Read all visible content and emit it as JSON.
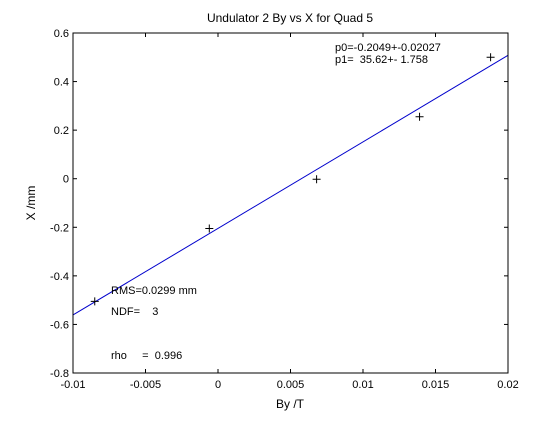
{
  "chart_data": {
    "type": "scatter",
    "title": "Undulator 2 By vs X for Quad 5",
    "xlabel": "By /T",
    "ylabel": "X /mm",
    "xlim": [
      -0.01,
      0.02
    ],
    "ylim": [
      -0.8,
      0.6
    ],
    "grid": false,
    "x_ticks": [
      -0.01,
      -0.005,
      0,
      0.005,
      0.01,
      0.015,
      0.02
    ],
    "x_tick_labels": [
      "-0.01",
      "-0.005",
      "0",
      "0.005",
      "0.01",
      "0.015",
      "0.02"
    ],
    "y_ticks": [
      -0.8,
      -0.6,
      -0.4,
      -0.2,
      0,
      0.2,
      0.4,
      0.6
    ],
    "y_tick_labels": [
      "-0.8",
      "-0.6",
      "-0.4",
      "-0.2",
      "0",
      "0.2",
      "0.4",
      "0.6"
    ],
    "points": [
      {
        "x": -0.0085,
        "y": -0.505
      },
      {
        "x": -0.0006,
        "y": -0.205
      },
      {
        "x": 0.0068,
        "y": -0.002
      },
      {
        "x": 0.0139,
        "y": 0.255
      },
      {
        "x": 0.0188,
        "y": 0.5
      }
    ],
    "fit_line": {
      "x": [
        -0.01,
        0.02
      ],
      "y": [
        -0.561,
        0.508
      ],
      "color": "#0000cc"
    },
    "point_color": "#000000",
    "annotations": {
      "p0": "p0=-0.2049+-0.02027",
      "p1": "p1=  35.62+- 1.758",
      "rms": "RMS=0.0299 mm",
      "ndf": "NDF=    3",
      "rho": "rho     =  0.996"
    }
  }
}
